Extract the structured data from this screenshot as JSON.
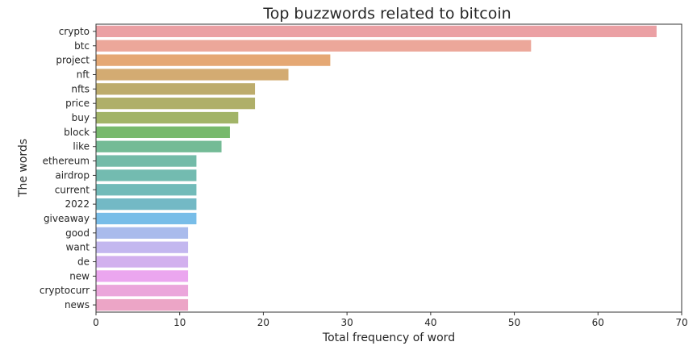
{
  "chart_data": {
    "type": "bar",
    "orientation": "horizontal",
    "title": "Top buzzwords related to bitcoin",
    "xlabel": "Total frequency of word",
    "ylabel": "The words",
    "xlim": [
      0,
      70
    ],
    "xticks": [
      0,
      10,
      20,
      30,
      40,
      50,
      60,
      70
    ],
    "grid": false,
    "categories": [
      "crypto",
      "btc",
      "project",
      "nft",
      "nfts",
      "price",
      "buy",
      "block",
      "like",
      "ethereum",
      "airdrop",
      "current",
      "2022",
      "giveaway",
      "good",
      "want",
      "de",
      "new",
      "cryptocurr",
      "news"
    ],
    "values": [
      67,
      52,
      28,
      23,
      19,
      19,
      17,
      16,
      15,
      12,
      12,
      12,
      12,
      12,
      11,
      11,
      11,
      11,
      11,
      11
    ],
    "colors": [
      "#eba0a4",
      "#eca79a",
      "#e5a874",
      "#d3ab72",
      "#bdac6c",
      "#afaf69",
      "#a2b468",
      "#77b96c",
      "#74bb96",
      "#73bba8",
      "#73bbb0",
      "#72bbb9",
      "#73b9c5",
      "#78bde8",
      "#a9bbec",
      "#c3b7ef",
      "#d2b0ee",
      "#eba6ef",
      "#eba6db",
      "#eca5c6"
    ]
  }
}
